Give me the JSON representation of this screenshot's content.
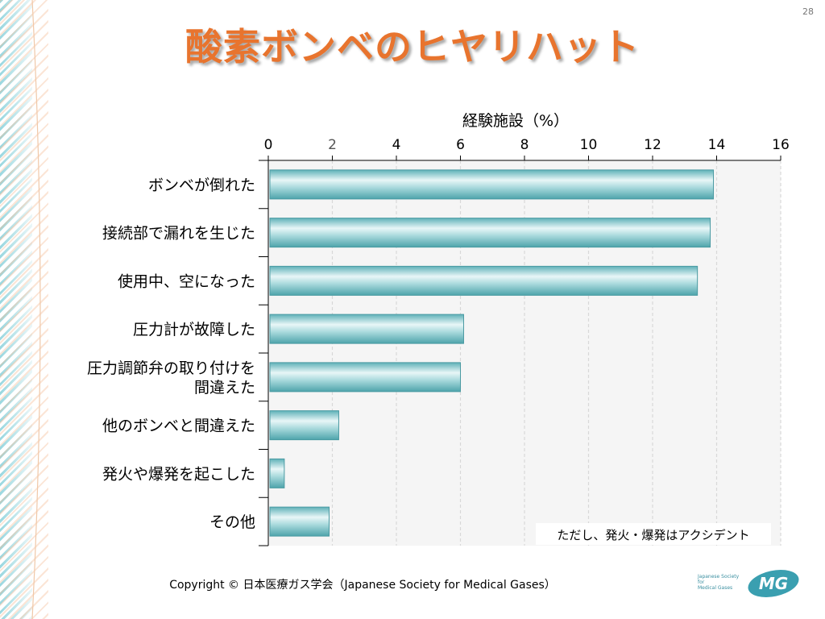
{
  "page_number": "28",
  "title": "酸素ボンベのヒヤリハット",
  "chart_data": {
    "type": "bar",
    "orientation": "horizontal",
    "title": "",
    "xlabel": "経験施設（%）",
    "xlim": [
      0,
      16
    ],
    "xticks": [
      "0",
      "2",
      "4",
      "6",
      "8",
      "10",
      "12",
      "14",
      "16"
    ],
    "categories": [
      "ボンベが倒れた",
      "接続部で漏れを生じた",
      "使用中、空になった",
      "圧力計が故障した",
      "圧力調節弁の取り付けを\n間違えた",
      "他のボンベと間違えた",
      "発火や爆発を起こした",
      "その他"
    ],
    "values": [
      13.9,
      13.8,
      13.4,
      6.1,
      6.0,
      2.2,
      0.5,
      1.9
    ],
    "grid": true,
    "bar_color": "#7fc7cc",
    "annotation": "ただし、発火・爆発はアクシデント"
  },
  "footer": {
    "copyright": "Copyright © 日本医療ガス学会（Japanese Society for Medical Gases）"
  },
  "logo": {
    "text_line1": "Japanese Society for",
    "text_line2": "Medical Gases",
    "mark": "MG"
  },
  "colors": {
    "title": "#e8742e",
    "accent": "#3a9fb0"
  }
}
